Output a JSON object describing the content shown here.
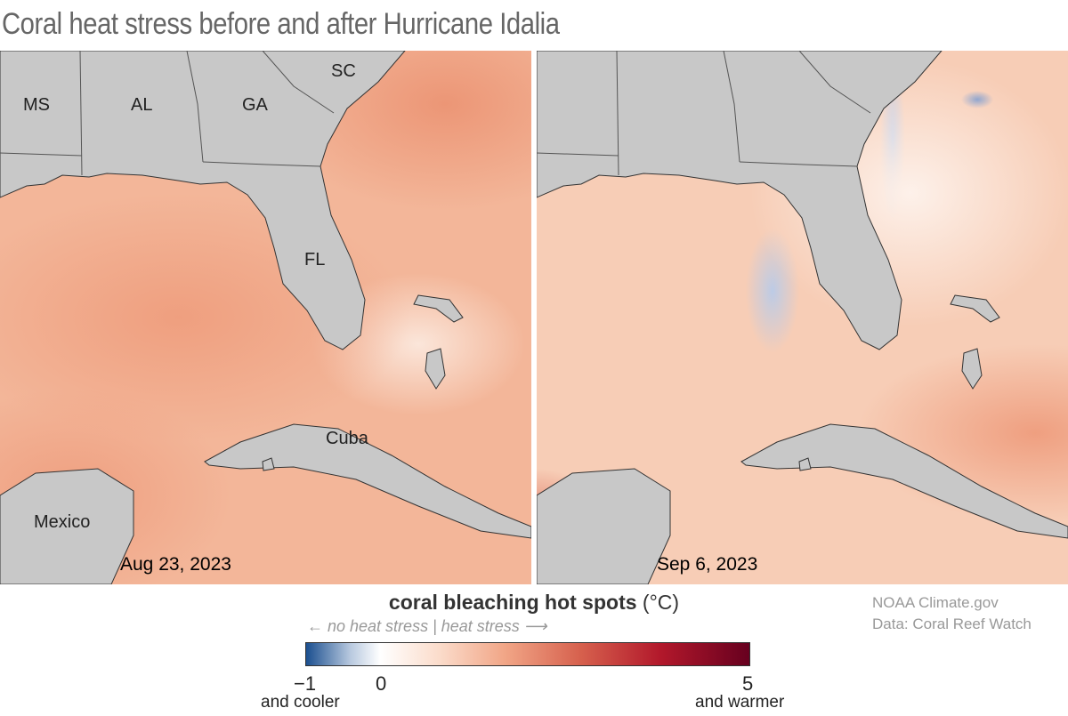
{
  "title": "Coral heat stress before and after Hurricane Idalia",
  "panels": [
    {
      "date": "Aug 23, 2023",
      "labels": {
        "ms": "MS",
        "al": "AL",
        "ga": "GA",
        "sc": "SC",
        "fl": "FL",
        "cuba": "Cuba",
        "mexico": "Mexico"
      }
    },
    {
      "date": "Sep 6, 2023"
    }
  ],
  "colorbar": {
    "title": "coral bleaching hot spots",
    "unit": "(°C)",
    "left_note": "← no heat stress",
    "right_note": "heat stress ⟶",
    "min": "−1",
    "zero": "0",
    "max": "5",
    "min_label": "and cooler",
    "max_label": "and warmer",
    "colors": [
      "#1b4f8f",
      "#ffffff",
      "#f1a586",
      "#b2182b",
      "#67001f"
    ]
  },
  "credit": {
    "line1": "NOAA Climate.gov",
    "line2": "Data: Coral Reef Watch"
  }
}
